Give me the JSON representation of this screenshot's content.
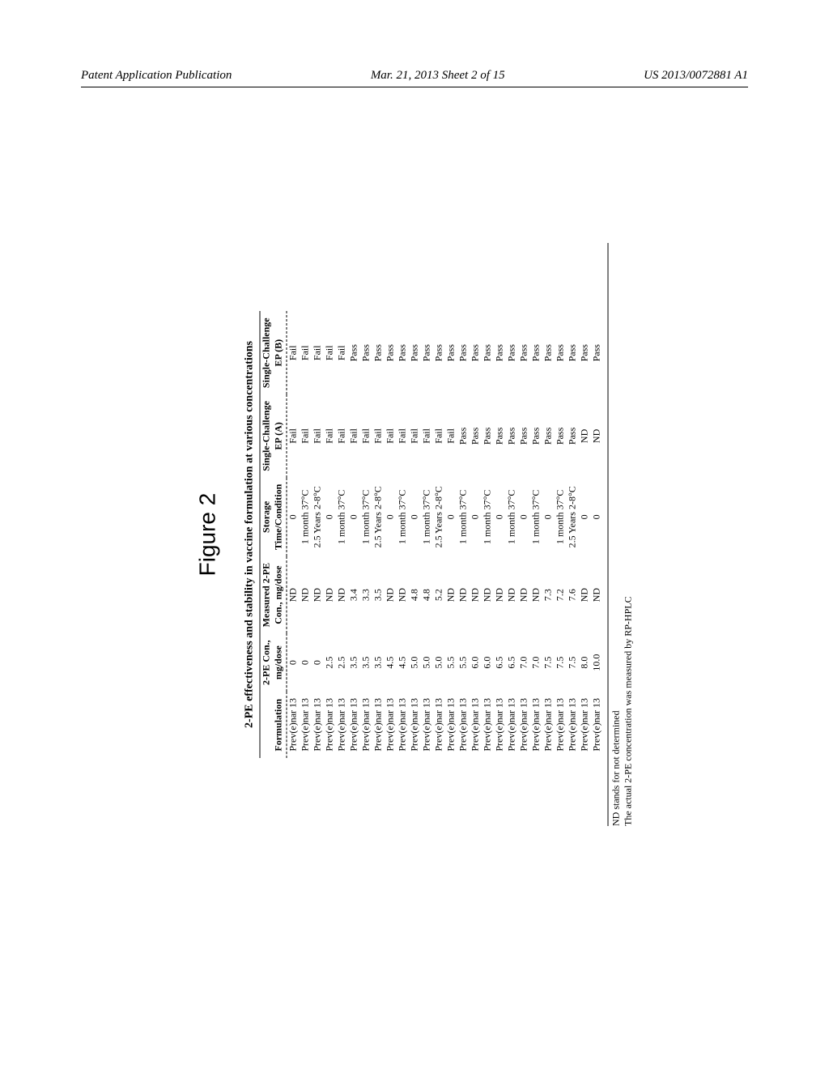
{
  "header": {
    "left": "Patent Application Publication",
    "center": "Mar. 21, 2013  Sheet 2 of 15",
    "right": "US 2013/0072881 A1"
  },
  "figure": {
    "label": "Figure 2",
    "table_title": "2-PE effectiveness and stability in vaccine formulation at various concentrations",
    "columns": {
      "formulation_group": "",
      "formulation": "Formulation",
      "con_group": "2-PE Con.,",
      "con": "mg/dose",
      "measured_group": "Measured 2-PE",
      "measured": "Con., mg/dose",
      "storage_group": "Storage",
      "storage": "Time/Condition",
      "epa_group": "Single-Challenge",
      "epa": "EP (A)",
      "epb_group": "Single-Challenge",
      "epb": "EP (B)"
    },
    "rows": [
      {
        "f": "Prev(e)nar 13",
        "c": "0",
        "m": "ND",
        "s": "0",
        "a": "Fail",
        "b": "Fail"
      },
      {
        "f": "Prev(e)nar 13",
        "c": "0",
        "m": "ND",
        "s": "1 month 37°C",
        "a": "Fail",
        "b": "Fail"
      },
      {
        "f": "Prev(e)nar 13",
        "c": "0",
        "m": "ND",
        "s": "2.5 Years 2-8°C",
        "a": "Fail",
        "b": "Fail"
      },
      {
        "f": "Prev(e)nar 13",
        "c": "2.5",
        "m": "ND",
        "s": "0",
        "a": "Fail",
        "b": "Fail"
      },
      {
        "f": "Prev(e)nar 13",
        "c": "2.5",
        "m": "ND",
        "s": "1 month 37°C",
        "a": "Fail",
        "b": "Fail"
      },
      {
        "f": "Prev(e)nar 13",
        "c": "3.5",
        "m": "3.4",
        "s": "0",
        "a": "Fail",
        "b": "Pass"
      },
      {
        "f": "Prev(e)nar 13",
        "c": "3.5",
        "m": "3.3",
        "s": "1 month 37°C",
        "a": "Fail",
        "b": "Pass"
      },
      {
        "f": "Prev(e)nar 13",
        "c": "3.5",
        "m": "3.5",
        "s": "2.5 Years 2-8°C",
        "a": "Fail",
        "b": "Pass"
      },
      {
        "f": "Prev(e)nar 13",
        "c": "4.5",
        "m": "ND",
        "s": "0",
        "a": "Fail",
        "b": "Pass"
      },
      {
        "f": "Prev(e)nar 13",
        "c": "4.5",
        "m": "ND",
        "s": "1 month 37°C",
        "a": "Fail",
        "b": "Pass"
      },
      {
        "f": "Prev(e)nar 13",
        "c": "5.0",
        "m": "4.8",
        "s": "0",
        "a": "Fail",
        "b": "Pass"
      },
      {
        "f": "Prev(e)nar 13",
        "c": "5.0",
        "m": "4.8",
        "s": "1 month 37°C",
        "a": "Fail",
        "b": "Pass"
      },
      {
        "f": "Prev(e)nar 13",
        "c": "5.0",
        "m": "5.2",
        "s": "2.5 Years 2-8°C",
        "a": "Fail",
        "b": "Pass"
      },
      {
        "f": "Prev(e)nar 13",
        "c": "5.5",
        "m": "ND",
        "s": "0",
        "a": "Fail",
        "b": "Pass"
      },
      {
        "f": "Prev(e)nar 13",
        "c": "5.5",
        "m": "ND",
        "s": "1 month 37°C",
        "a": "Pass",
        "b": "Pass"
      },
      {
        "f": "Prev(e)nar 13",
        "c": "6.0",
        "m": "ND",
        "s": "0",
        "a": "Pass",
        "b": "Pass"
      },
      {
        "f": "Prev(e)nar 13",
        "c": "6.0",
        "m": "ND",
        "s": "1 month 37°C",
        "a": "Pass",
        "b": "Pass"
      },
      {
        "f": "Prev(e)nar 13",
        "c": "6.5",
        "m": "ND",
        "s": "0",
        "a": "Pass",
        "b": "Pass"
      },
      {
        "f": "Prev(e)nar 13",
        "c": "6.5",
        "m": "ND",
        "s": "1 month 37°C",
        "a": "Pass",
        "b": "Pass"
      },
      {
        "f": "Prev(e)nar 13",
        "c": "7.0",
        "m": "ND",
        "s": "0",
        "a": "Pass",
        "b": "Pass"
      },
      {
        "f": "Prev(e)nar 13",
        "c": "7.0",
        "m": "ND",
        "s": "1 month 37°C",
        "a": "Pass",
        "b": "Pass"
      },
      {
        "f": "Prev(e)nar 13",
        "c": "7.5",
        "m": "7.3",
        "s": "0",
        "a": "Pass",
        "b": "Pass"
      },
      {
        "f": "Prev(e)nar 13",
        "c": "7.5",
        "m": "7.2",
        "s": "1 month 37°C",
        "a": "Pass",
        "b": "Pass"
      },
      {
        "f": "Prev(e)nar 13",
        "c": "7.5",
        "m": "7.6",
        "s": "2.5 Years 2-8°C",
        "a": "Pass",
        "b": "Pass"
      },
      {
        "f": "Prev(e)nar 13",
        "c": "8.0",
        "m": "ND",
        "s": "0",
        "a": "ND",
        "b": "Pass"
      },
      {
        "f": "Prev(e)nar 13",
        "c": "10.0",
        "m": "ND",
        "s": "0",
        "a": "ND",
        "b": "Pass"
      }
    ],
    "footnotes": [
      "ND stands for not determined",
      "The actual 2-PE concentration was measured by RP-HPLC"
    ]
  }
}
